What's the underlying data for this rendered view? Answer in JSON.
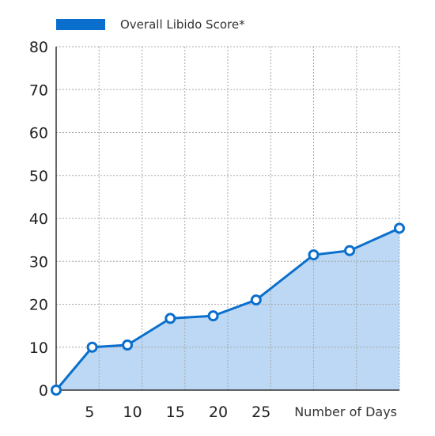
{
  "chart_data": {
    "type": "area",
    "title": "",
    "legend": {
      "label": "Overall Libido Score*",
      "position": "top-left"
    },
    "xlabel": "Number of Days",
    "ylabel": "",
    "ylim": [
      0,
      80
    ],
    "y_ticks": [
      "0",
      "10",
      "20",
      "30",
      "40",
      "50",
      "60",
      "70",
      "80"
    ],
    "x_ticks": [
      {
        "value": 5,
        "label": "5"
      },
      {
        "value": 10,
        "label": "10"
      },
      {
        "value": 15,
        "label": "15"
      },
      {
        "value": 20,
        "label": "20"
      },
      {
        "value": 25,
        "label": "25"
      }
    ],
    "grid": true,
    "colors": {
      "line": "#0a6fcc",
      "fill": "#bcd8f4",
      "grid": "#a8a8a8",
      "axis": "#333333"
    },
    "series": [
      {
        "name": "Overall Libido Score*",
        "points": [
          {
            "x": 0,
            "y": 0
          },
          {
            "x": 4.2,
            "y": 10
          },
          {
            "x": 8.3,
            "y": 10.5
          },
          {
            "x": 13.3,
            "y": 16.7
          },
          {
            "x": 18.3,
            "y": 17.3
          },
          {
            "x": 23.3,
            "y": 21
          },
          {
            "x": 30,
            "y": 31.5
          },
          {
            "x": 34.2,
            "y": 32.5
          },
          {
            "x": 40,
            "y": 37.7
          }
        ]
      }
    ]
  }
}
